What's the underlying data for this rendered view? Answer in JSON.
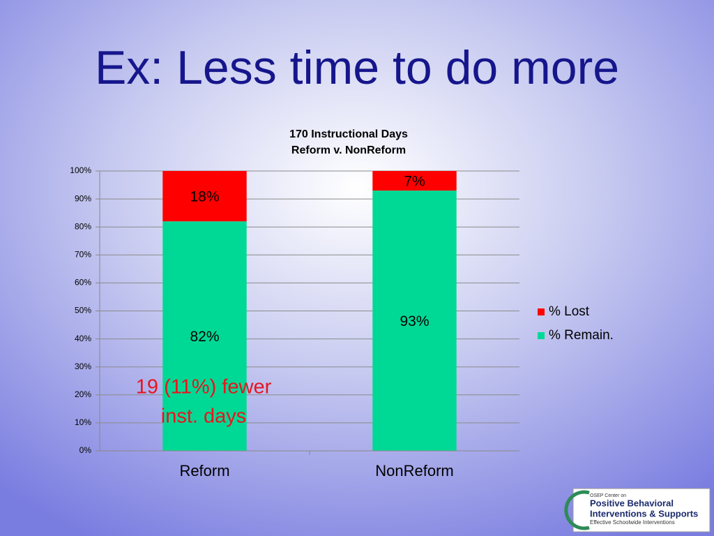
{
  "slide_title": "Ex: Less time to do more",
  "chart_data": {
    "type": "stacked_bar",
    "title": [
      "170 Instructional Days",
      "Reform v. NonReform"
    ],
    "categories": [
      "Reform",
      "NonReform"
    ],
    "series": [
      {
        "name": "% Remain.",
        "color": "#00d995",
        "values": [
          82,
          93
        ],
        "value_labels": [
          "82%",
          "93%"
        ]
      },
      {
        "name": "% Lost",
        "color": "#ff0000",
        "values": [
          18,
          7
        ],
        "value_labels": [
          "18%",
          "7%"
        ]
      }
    ],
    "ylim": [
      0,
      100
    ],
    "yticks": [
      {
        "value": 0,
        "label": "0%"
      },
      {
        "value": 10,
        "label": "10%"
      },
      {
        "value": 20,
        "label": "20%"
      },
      {
        "value": 30,
        "label": "30%"
      },
      {
        "value": 40,
        "label": "40%"
      },
      {
        "value": 50,
        "label": "50%"
      },
      {
        "value": 60,
        "label": "60%"
      },
      {
        "value": 70,
        "label": "70%"
      },
      {
        "value": 80,
        "label": "80%"
      },
      {
        "value": 90,
        "label": "90%"
      },
      {
        "value": 100,
        "label": "100%"
      }
    ],
    "grid": true,
    "legend": "right",
    "annotation": [
      "19 (11%) fewer",
      "inst. days"
    ],
    "annotation_color": "#e8141e"
  },
  "logo": {
    "lines": [
      "OSEP Center on",
      "Positive Behavioral",
      "Interventions & Supports",
      "Effective Schoolwide Interventions"
    ]
  }
}
